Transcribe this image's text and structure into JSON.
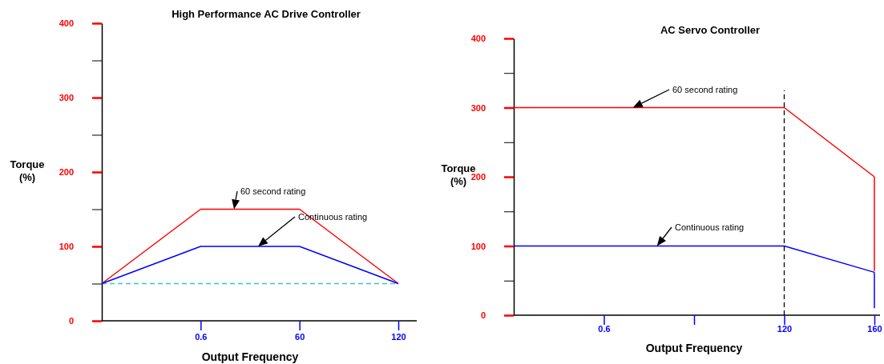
{
  "chart_data": [
    {
      "type": "line",
      "title": "High Performance AC Drive Controller",
      "xlabel": "Output Frequency",
      "ylabel": "Torque (%)",
      "categories": [
        null,
        "0.6",
        "60",
        "120"
      ],
      "ylim": [
        0,
        400
      ],
      "yticks": [
        0,
        {
          "value": 50,
          "label": null
        },
        100,
        {
          "value": 150,
          "label": null
        },
        200,
        {
          "value": 250,
          "label": null
        },
        300,
        {
          "value": 350,
          "label": null
        },
        400
      ],
      "series": [
        {
          "color": "#ff0000",
          "values": [
            50,
            150,
            150,
            50
          ]
        },
        {
          "color": "#0000ff",
          "values": [
            50,
            100,
            100,
            50
          ]
        }
      ],
      "ref_lines": [
        {
          "axis": "y",
          "value": 50,
          "color": "#33cccc",
          "line_style": "dashed"
        }
      ],
      "annotations": [
        "60 second rating",
        "Continuous rating"
      ],
      "grid": false,
      "marker": "none",
      "line_style": "solid"
    },
    {
      "type": "line",
      "title": "AC Servo Controller",
      "xlabel": "Output Frequency",
      "ylabel": "Torque (%)",
      "categories": [
        null,
        "0.6",
        null,
        "120",
        "160"
      ],
      "ylim": [
        0,
        400
      ],
      "yticks": [
        0,
        {
          "value": 50,
          "label": null
        },
        100,
        {
          "value": 150,
          "label": null
        },
        200,
        {
          "value": 250,
          "label": null
        },
        300,
        {
          "value": 350,
          "label": null
        },
        400
      ],
      "series": [
        {
          "color": "#ff0000",
          "values": [
            300,
            300,
            300,
            300,
            200
          ]
        },
        {
          "color": "#0000ff",
          "values": [
            100,
            100,
            100,
            100,
            62
          ]
        },
        {
          "color": "#ff0000",
          "x": [
            "160",
            "160"
          ],
          "values": [
            200,
            64
          ]
        },
        {
          "color": "#0000ff",
          "x": [
            "160",
            "160"
          ],
          "values": [
            62,
            10
          ]
        }
      ],
      "ref_lines": [
        {
          "axis": "x",
          "value": "120",
          "color": "#000000",
          "line_style": "dashed"
        }
      ],
      "annotations": [
        "60 second rating",
        "Continuous rating"
      ],
      "grid": false,
      "marker": "none",
      "line_style": "solid"
    }
  ]
}
